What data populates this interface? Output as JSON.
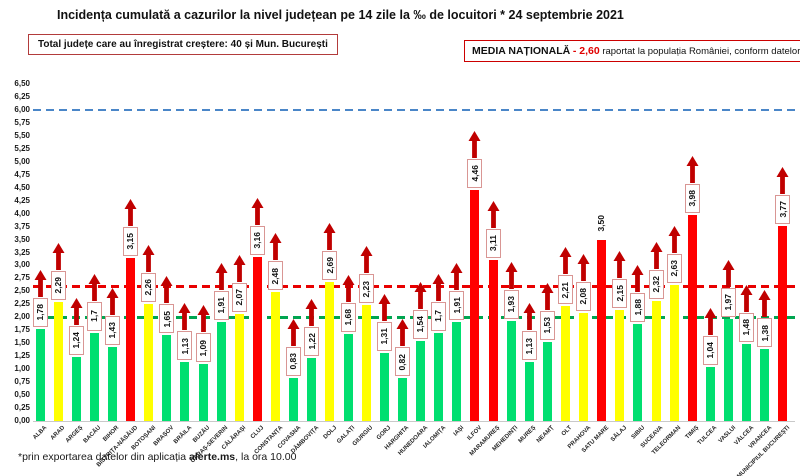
{
  "title": "Incidența cumulată a cazurilor la nivel județean pe 14 zile la ‰ de locuitori * 24 septembrie 2021",
  "info_box": {
    "text": "Total județe care au înregistrat creștere:  40 și Mun. București"
  },
  "national_average": {
    "label": "MEDIA NAȚIONALĂ",
    "value_text": "- 2,60",
    "suffix": "raportat la populația României, conform datelor INS"
  },
  "footnote": {
    "prefix": "*prin exportarea datelor din aplicația ",
    "bold": "alerte.ms",
    "suffix": ", la ora 10.00"
  },
  "colors": {
    "bar_green": "#00df70",
    "bar_yellow": "#ffff00",
    "bar_red": "#ff0000",
    "arrow": "#c00000",
    "label_box_border": "#d99694",
    "ref_blue": "#4a86c8",
    "ref_red": "#e80000",
    "ref_green": "#00a550"
  },
  "chart_data": {
    "type": "bar",
    "title": "Incidența cumulată a cazurilor la nivel județean pe 14 zile la ‰ de locuitori * 24 septembrie 2021",
    "xlabel": "",
    "ylabel": "",
    "ylim": [
      0,
      6.5
    ],
    "ytick_step": 0.25,
    "yticks": [
      "6,50",
      "6,25",
      "6,00",
      "5,75",
      "5,50",
      "5,25",
      "5,00",
      "4,75",
      "4,50",
      "4,25",
      "4,00",
      "3,75",
      "3,50",
      "3,25",
      "3,00",
      "2,75",
      "2,50",
      "2,25",
      "2,00",
      "1,75",
      "1,50",
      "1,25",
      "1,00",
      "0,75",
      "0,50",
      "0,25",
      "0,00"
    ],
    "grid": false,
    "legend": false,
    "reference_lines": [
      {
        "value": 6.0,
        "color_key": "ref_blue",
        "name": "upper-threshold-line"
      },
      {
        "value": 2.6,
        "color_key": "ref_red",
        "name": "national-average-line"
      },
      {
        "value": 2.0,
        "color_key": "ref_green",
        "name": "warning-threshold-line"
      }
    ],
    "bars": [
      {
        "county": "ALBA",
        "value": 1.78,
        "label": "1,78",
        "color": "green",
        "arrow": true,
        "boxed": true
      },
      {
        "county": "ARAD",
        "value": 2.29,
        "label": "2,29",
        "color": "yellow",
        "arrow": true,
        "boxed": true
      },
      {
        "county": "ARGEȘ",
        "value": 1.24,
        "label": "1,24",
        "color": "green",
        "arrow": true,
        "boxed": true
      },
      {
        "county": "BACĂU",
        "value": 1.7,
        "label": "1,7",
        "color": "green",
        "arrow": true,
        "boxed": true
      },
      {
        "county": "BIHOR",
        "value": 1.43,
        "label": "1,43",
        "color": "green",
        "arrow": true,
        "boxed": true
      },
      {
        "county": "BISTRIȚA-NĂSĂUD",
        "value": 3.15,
        "label": "3,15",
        "color": "red",
        "arrow": true,
        "boxed": true
      },
      {
        "county": "BOTOȘANI",
        "value": 2.26,
        "label": "2,26",
        "color": "yellow",
        "arrow": true,
        "boxed": true
      },
      {
        "county": "BRAȘOV",
        "value": 1.65,
        "label": "1,65",
        "color": "green",
        "arrow": true,
        "boxed": true
      },
      {
        "county": "BRĂILA",
        "value": 1.13,
        "label": "1,13",
        "color": "green",
        "arrow": true,
        "boxed": true
      },
      {
        "county": "BUZĂU",
        "value": 1.09,
        "label": "1,09",
        "color": "green",
        "arrow": true,
        "boxed": true
      },
      {
        "county": "CARAȘ-SEVERIN",
        "value": 1.91,
        "label": "1,91",
        "color": "green",
        "arrow": true,
        "boxed": true
      },
      {
        "county": "CĂLĂRAȘI",
        "value": 2.07,
        "label": "2,07",
        "color": "yellow",
        "arrow": true,
        "boxed": true
      },
      {
        "county": "CLUJ",
        "value": 3.16,
        "label": "3,16",
        "color": "red",
        "arrow": true,
        "boxed": true
      },
      {
        "county": "CONSTANȚA",
        "value": 2.48,
        "label": "2,48",
        "color": "yellow",
        "arrow": true,
        "boxed": true
      },
      {
        "county": "COVASNA",
        "value": 0.83,
        "label": "0,83",
        "color": "green",
        "arrow": true,
        "boxed": true
      },
      {
        "county": "DÂMBOVIȚA",
        "value": 1.22,
        "label": "1,22",
        "color": "green",
        "arrow": true,
        "boxed": true
      },
      {
        "county": "DOLJ",
        "value": 2.69,
        "label": "2,69",
        "color": "yellow",
        "arrow": true,
        "boxed": true
      },
      {
        "county": "GALAȚI",
        "value": 1.68,
        "label": "1,68",
        "color": "green",
        "arrow": true,
        "boxed": true
      },
      {
        "county": "GIURGIU",
        "value": 2.23,
        "label": "2,23",
        "color": "yellow",
        "arrow": true,
        "boxed": true
      },
      {
        "county": "GORJ",
        "value": 1.31,
        "label": "1,31",
        "color": "green",
        "arrow": true,
        "boxed": true
      },
      {
        "county": "HARGHITA",
        "value": 0.82,
        "label": "0,82",
        "color": "green",
        "arrow": true,
        "boxed": true
      },
      {
        "county": "HUNEDOARA",
        "value": 1.54,
        "label": "1,54",
        "color": "green",
        "arrow": true,
        "boxed": true
      },
      {
        "county": "IALOMIȚA",
        "value": 1.7,
        "label": "1,7",
        "color": "green",
        "arrow": true,
        "boxed": true
      },
      {
        "county": "IAȘI",
        "value": 1.91,
        "label": "1,91",
        "color": "green",
        "arrow": true,
        "boxed": true
      },
      {
        "county": "ILFOV",
        "value": 4.46,
        "label": "4,46",
        "color": "red",
        "arrow": true,
        "boxed": true
      },
      {
        "county": "MARAMUREȘ",
        "value": 3.11,
        "label": "3,11",
        "color": "red",
        "arrow": true,
        "boxed": true
      },
      {
        "county": "MEHEDINȚI",
        "value": 1.93,
        "label": "1,93",
        "color": "green",
        "arrow": true,
        "boxed": true
      },
      {
        "county": "MUREȘ",
        "value": 1.13,
        "label": "1,13",
        "color": "green",
        "arrow": true,
        "boxed": true
      },
      {
        "county": "NEAMȚ",
        "value": 1.53,
        "label": "1,53",
        "color": "green",
        "arrow": true,
        "boxed": true
      },
      {
        "county": "OLT",
        "value": 2.21,
        "label": "2,21",
        "color": "yellow",
        "arrow": true,
        "boxed": true
      },
      {
        "county": "PRAHOVA",
        "value": 2.08,
        "label": "2,08",
        "color": "yellow",
        "arrow": true,
        "boxed": true
      },
      {
        "county": "SATU MARE",
        "value": 3.5,
        "label": "3,50",
        "color": "red",
        "arrow": false,
        "boxed": false
      },
      {
        "county": "SĂLAJ",
        "value": 2.15,
        "label": "2,15",
        "color": "yellow",
        "arrow": true,
        "boxed": true
      },
      {
        "county": "SIBIU",
        "value": 1.88,
        "label": "1,88",
        "color": "green",
        "arrow": true,
        "boxed": true
      },
      {
        "county": "SUCEAVA",
        "value": 2.32,
        "label": "2,32",
        "color": "yellow",
        "arrow": true,
        "boxed": true
      },
      {
        "county": "TELEORMAN",
        "value": 2.63,
        "label": "2,63",
        "color": "yellow",
        "arrow": true,
        "boxed": true
      },
      {
        "county": "TIMIȘ",
        "value": 3.98,
        "label": "3,98",
        "color": "red",
        "arrow": true,
        "boxed": true
      },
      {
        "county": "TULCEA",
        "value": 1.04,
        "label": "1,04",
        "color": "green",
        "arrow": true,
        "boxed": true
      },
      {
        "county": "VASLUI",
        "value": 1.97,
        "label": "1,97",
        "color": "green",
        "arrow": true,
        "boxed": true
      },
      {
        "county": "VÂLCEA",
        "value": 1.48,
        "label": "1,48",
        "color": "green",
        "arrow": true,
        "boxed": true
      },
      {
        "county": "VRANCEA",
        "value": 1.38,
        "label": "1,38",
        "color": "green",
        "arrow": true,
        "boxed": true
      },
      {
        "county": "MUNICIPIUL BUCUREȘTI",
        "value": 3.77,
        "label": "3,77",
        "color": "red",
        "arrow": true,
        "boxed": true
      }
    ]
  }
}
